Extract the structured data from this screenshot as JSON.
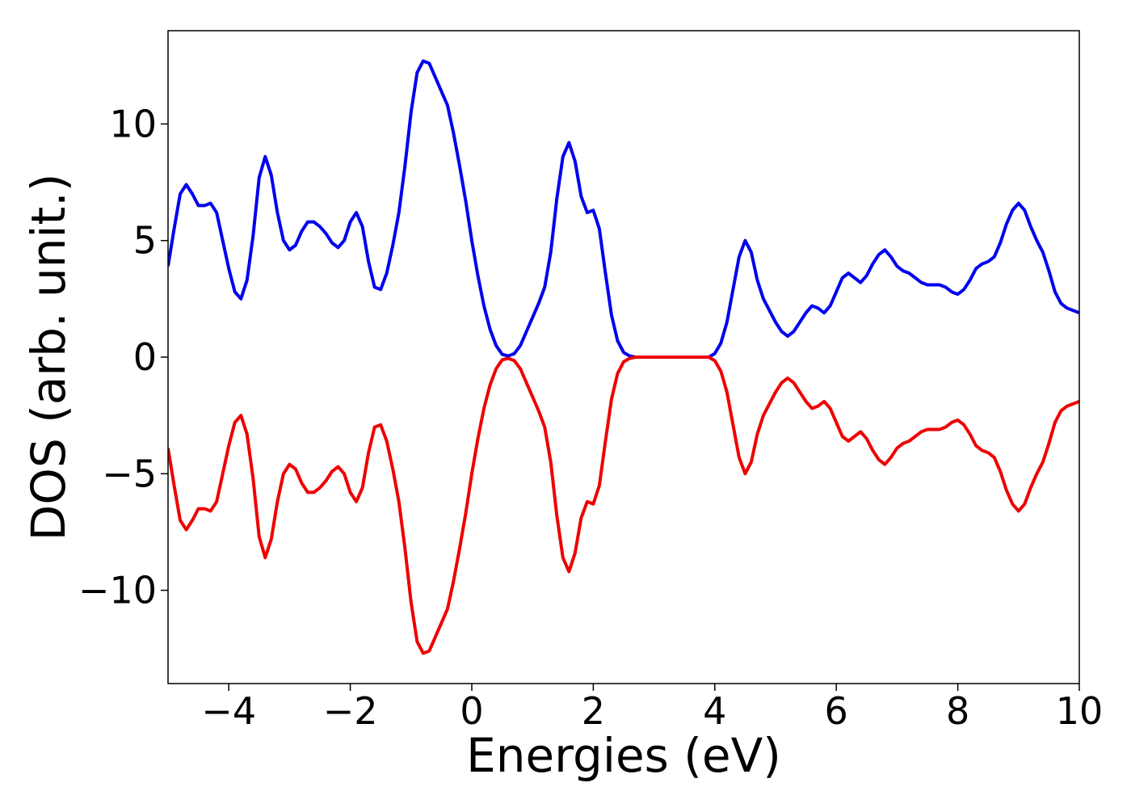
{
  "chart_data": {
    "type": "line",
    "xlabel": "Energies (eV)",
    "ylabel": "DOS (arb. unit.)",
    "xlim": [
      -5,
      10
    ],
    "ylim": [
      -14,
      14
    ],
    "xticks": [
      {
        "value": -4,
        "label": "−4"
      },
      {
        "value": -2,
        "label": "−2"
      },
      0,
      2,
      4,
      6,
      8,
      10
    ],
    "yticks": [
      {
        "value": -10,
        "label": "−10"
      },
      {
        "value": -5,
        "label": "−5"
      },
      0,
      5,
      10
    ],
    "x": [
      -5.0,
      -4.9,
      -4.8,
      -4.7,
      -4.6,
      -4.5,
      -4.4,
      -4.3,
      -4.2,
      -4.1,
      -4.0,
      -3.9,
      -3.8,
      -3.7,
      -3.6,
      -3.5,
      -3.4,
      -3.3,
      -3.2,
      -3.1,
      -3.0,
      -2.9,
      -2.8,
      -2.7,
      -2.6,
      -2.5,
      -2.4,
      -2.3,
      -2.2,
      -2.1,
      -2.0,
      -1.9,
      -1.8,
      -1.7,
      -1.6,
      -1.5,
      -1.4,
      -1.3,
      -1.2,
      -1.1,
      -1.0,
      -0.9,
      -0.8,
      -0.7,
      -0.6,
      -0.5,
      -0.4,
      -0.3,
      -0.2,
      -0.1,
      0.0,
      0.1,
      0.2,
      0.3,
      0.4,
      0.5,
      0.6,
      0.7,
      0.8,
      0.9,
      1.0,
      1.1,
      1.2,
      1.3,
      1.4,
      1.5,
      1.6,
      1.7,
      1.8,
      1.9,
      2.0,
      2.1,
      2.2,
      2.3,
      2.4,
      2.5,
      2.6,
      2.7,
      2.8,
      2.9,
      3.0,
      3.1,
      3.2,
      3.3,
      3.4,
      3.5,
      3.6,
      3.7,
      3.8,
      3.9,
      4.0,
      4.1,
      4.2,
      4.3,
      4.4,
      4.5,
      4.6,
      4.7,
      4.8,
      4.9,
      5.0,
      5.1,
      5.2,
      5.3,
      5.4,
      5.5,
      5.6,
      5.7,
      5.8,
      5.9,
      6.0,
      6.1,
      6.2,
      6.3,
      6.4,
      6.5,
      6.6,
      6.7,
      6.8,
      6.9,
      7.0,
      7.1,
      7.2,
      7.3,
      7.4,
      7.5,
      7.6,
      7.7,
      7.8,
      7.9,
      8.0,
      8.1,
      8.2,
      8.3,
      8.4,
      8.5,
      8.6,
      8.7,
      8.8,
      8.9,
      9.0,
      9.1,
      9.2,
      9.3,
      9.4,
      9.5,
      9.6,
      9.7,
      9.8,
      9.9,
      10.0
    ],
    "series": [
      {
        "color": "#0000ee",
        "values": [
          3.9,
          5.5,
          7.0,
          7.4,
          7.0,
          6.5,
          6.5,
          6.6,
          6.2,
          5.0,
          3.8,
          2.8,
          2.5,
          3.3,
          5.2,
          7.7,
          8.6,
          7.8,
          6.2,
          5.0,
          4.6,
          4.8,
          5.4,
          5.8,
          5.8,
          5.6,
          5.3,
          4.9,
          4.7,
          5.0,
          5.8,
          6.2,
          5.6,
          4.1,
          3.0,
          2.9,
          3.6,
          4.8,
          6.2,
          8.2,
          10.5,
          12.2,
          12.7,
          12.6,
          12.0,
          11.4,
          10.8,
          9.6,
          8.2,
          6.7,
          5.0,
          3.5,
          2.2,
          1.2,
          0.5,
          0.12,
          0.05,
          0.15,
          0.5,
          1.1,
          1.7,
          2.3,
          3.0,
          4.5,
          6.8,
          8.6,
          9.2,
          8.4,
          6.9,
          6.2,
          6.3,
          5.5,
          3.6,
          1.8,
          0.7,
          0.2,
          0.05,
          0,
          0,
          0,
          0,
          0,
          0,
          0,
          0,
          0,
          0,
          0,
          0,
          0,
          0.15,
          0.6,
          1.5,
          2.9,
          4.3,
          5.0,
          4.5,
          3.3,
          2.5,
          2.0,
          1.5,
          1.1,
          0.9,
          1.1,
          1.5,
          1.9,
          2.2,
          2.1,
          1.9,
          2.2,
          2.8,
          3.4,
          3.6,
          3.4,
          3.2,
          3.5,
          4.0,
          4.4,
          4.6,
          4.3,
          3.9,
          3.7,
          3.6,
          3.4,
          3.2,
          3.1,
          3.1,
          3.1,
          3.0,
          2.8,
          2.7,
          2.9,
          3.3,
          3.8,
          4.0,
          4.1,
          4.3,
          4.9,
          5.7,
          6.3,
          6.6,
          6.3,
          5.6,
          5.0,
          4.5,
          3.7,
          2.8,
          2.3,
          2.1,
          2.0,
          1.9
        ]
      },
      {
        "color": "#ee0000",
        "values": [
          -3.9,
          -5.5,
          -7.0,
          -7.4,
          -7.0,
          -6.5,
          -6.5,
          -6.6,
          -6.2,
          -5.0,
          -3.8,
          -2.8,
          -2.5,
          -3.3,
          -5.2,
          -7.7,
          -8.6,
          -7.8,
          -6.2,
          -5.0,
          -4.6,
          -4.8,
          -5.4,
          -5.8,
          -5.8,
          -5.6,
          -5.3,
          -4.9,
          -4.7,
          -5.0,
          -5.8,
          -6.2,
          -5.6,
          -4.1,
          -3.0,
          -2.9,
          -3.6,
          -4.8,
          -6.2,
          -8.2,
          -10.5,
          -12.2,
          -12.7,
          -12.6,
          -12.0,
          -11.4,
          -10.8,
          -9.6,
          -8.2,
          -6.7,
          -5.0,
          -3.5,
          -2.2,
          -1.2,
          -0.5,
          -0.12,
          -0.05,
          -0.15,
          -0.5,
          -1.1,
          -1.7,
          -2.3,
          -3.0,
          -4.5,
          -6.8,
          -8.6,
          -9.2,
          -8.4,
          -6.9,
          -6.2,
          -6.3,
          -5.5,
          -3.6,
          -1.8,
          -0.7,
          -0.2,
          -0.05,
          0,
          0,
          0,
          0,
          0,
          0,
          0,
          0,
          0,
          0,
          0,
          0,
          0,
          -0.15,
          -0.6,
          -1.5,
          -2.9,
          -4.3,
          -5.0,
          -4.5,
          -3.3,
          -2.5,
          -2.0,
          -1.5,
          -1.1,
          -0.9,
          -1.1,
          -1.5,
          -1.9,
          -2.2,
          -2.1,
          -1.9,
          -2.2,
          -2.8,
          -3.4,
          -3.6,
          -3.4,
          -3.2,
          -3.5,
          -4.0,
          -4.4,
          -4.6,
          -4.3,
          -3.9,
          -3.7,
          -3.6,
          -3.4,
          -3.2,
          -3.1,
          -3.1,
          -3.1,
          -3.0,
          -2.8,
          -2.7,
          -2.9,
          -3.3,
          -3.8,
          -4.0,
          -4.1,
          -4.3,
          -4.9,
          -5.7,
          -6.3,
          -6.6,
          -6.3,
          -5.6,
          -5.0,
          -4.5,
          -3.7,
          -2.8,
          -2.3,
          -2.1,
          -2.0,
          -1.9
        ]
      }
    ]
  }
}
